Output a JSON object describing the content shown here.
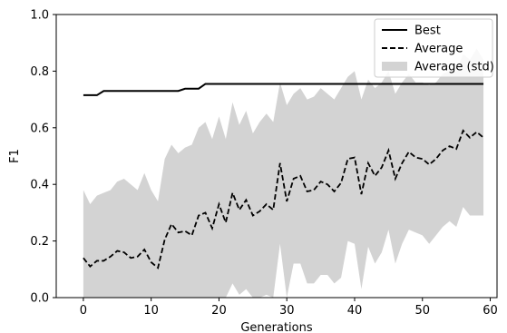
{
  "chart_data": {
    "type": "line",
    "title": "",
    "xlabel": "Generations",
    "ylabel": "F1",
    "xlim": [
      -4,
      61
    ],
    "ylim": [
      0.0,
      1.0
    ],
    "xticks": [
      0,
      10,
      20,
      30,
      40,
      50,
      60
    ],
    "yticks": [
      0.0,
      0.2,
      0.4,
      0.6,
      0.8,
      1.0
    ],
    "xtick_labels": [
      "0",
      "10",
      "20",
      "30",
      "40",
      "50",
      "60"
    ],
    "ytick_labels": [
      "0.0",
      "0.2",
      "0.4",
      "0.6",
      "0.8",
      "1.0"
    ],
    "grid": false,
    "legend_position": "top-right",
    "x": [
      0,
      1,
      2,
      3,
      4,
      5,
      6,
      7,
      8,
      9,
      10,
      11,
      12,
      13,
      14,
      15,
      16,
      17,
      18,
      19,
      20,
      21,
      22,
      23,
      24,
      25,
      26,
      27,
      28,
      29,
      30,
      31,
      32,
      33,
      34,
      35,
      36,
      37,
      38,
      39,
      40,
      41,
      42,
      43,
      44,
      45,
      46,
      47,
      48,
      49,
      50,
      51,
      52,
      53,
      54,
      55,
      56,
      57,
      58,
      59
    ],
    "series": [
      {
        "name": "Best",
        "style": "solid",
        "color": "#000000",
        "values": [
          0.715,
          0.715,
          0.715,
          0.73,
          0.73,
          0.73,
          0.73,
          0.73,
          0.73,
          0.73,
          0.73,
          0.73,
          0.73,
          0.73,
          0.73,
          0.738,
          0.738,
          0.738,
          0.755,
          0.755,
          0.755,
          0.755,
          0.755,
          0.755,
          0.755,
          0.755,
          0.755,
          0.755,
          0.755,
          0.755,
          0.755,
          0.755,
          0.755,
          0.755,
          0.755,
          0.755,
          0.755,
          0.755,
          0.755,
          0.755,
          0.755,
          0.755,
          0.755,
          0.755,
          0.755,
          0.755,
          0.755,
          0.755,
          0.755,
          0.755,
          0.755,
          0.755,
          0.755,
          0.755,
          0.755,
          0.755,
          0.755,
          0.755,
          0.755,
          0.755
        ]
      },
      {
        "name": "Average",
        "style": "dashed",
        "color": "#000000",
        "values": [
          0.14,
          0.11,
          0.13,
          0.13,
          0.145,
          0.165,
          0.16,
          0.14,
          0.145,
          0.17,
          0.125,
          0.105,
          0.205,
          0.26,
          0.23,
          0.235,
          0.22,
          0.29,
          0.3,
          0.245,
          0.33,
          0.265,
          0.37,
          0.31,
          0.345,
          0.29,
          0.305,
          0.33,
          0.31,
          0.475,
          0.34,
          0.42,
          0.43,
          0.375,
          0.38,
          0.41,
          0.4,
          0.375,
          0.405,
          0.49,
          0.495,
          0.365,
          0.475,
          0.43,
          0.46,
          0.52,
          0.42,
          0.475,
          0.515,
          0.495,
          0.49,
          0.47,
          0.49,
          0.52,
          0.535,
          0.525,
          0.59,
          0.565,
          0.585,
          0.565
        ]
      },
      {
        "name": "Average (std)",
        "style": "band",
        "color": "#d3d3d3",
        "upper": [
          0.38,
          0.33,
          0.36,
          0.37,
          0.38,
          0.41,
          0.42,
          0.4,
          0.38,
          0.44,
          0.38,
          0.34,
          0.49,
          0.54,
          0.51,
          0.53,
          0.54,
          0.6,
          0.62,
          0.56,
          0.64,
          0.56,
          0.69,
          0.61,
          0.66,
          0.58,
          0.62,
          0.65,
          0.62,
          0.76,
          0.68,
          0.72,
          0.74,
          0.7,
          0.71,
          0.74,
          0.72,
          0.7,
          0.74,
          0.78,
          0.8,
          0.7,
          0.77,
          0.74,
          0.76,
          0.8,
          0.72,
          0.76,
          0.79,
          0.76,
          0.76,
          0.75,
          0.76,
          0.79,
          0.8,
          0.8,
          0.86,
          0.84,
          0.88,
          0.84
        ],
        "lower": [
          0.0,
          0.0,
          0.0,
          0.0,
          0.0,
          0.0,
          0.0,
          0.0,
          0.0,
          0.0,
          0.0,
          0.0,
          0.0,
          0.0,
          0.0,
          0.0,
          0.0,
          0.0,
          0.0,
          0.0,
          0.0,
          0.0,
          0.05,
          0.01,
          0.03,
          0.0,
          0.0,
          0.01,
          0.0,
          0.19,
          0.0,
          0.12,
          0.12,
          0.05,
          0.05,
          0.08,
          0.08,
          0.05,
          0.07,
          0.2,
          0.19,
          0.03,
          0.18,
          0.12,
          0.16,
          0.24,
          0.12,
          0.19,
          0.24,
          0.23,
          0.22,
          0.19,
          0.22,
          0.25,
          0.27,
          0.25,
          0.32,
          0.29,
          0.29,
          0.29
        ]
      }
    ]
  }
}
